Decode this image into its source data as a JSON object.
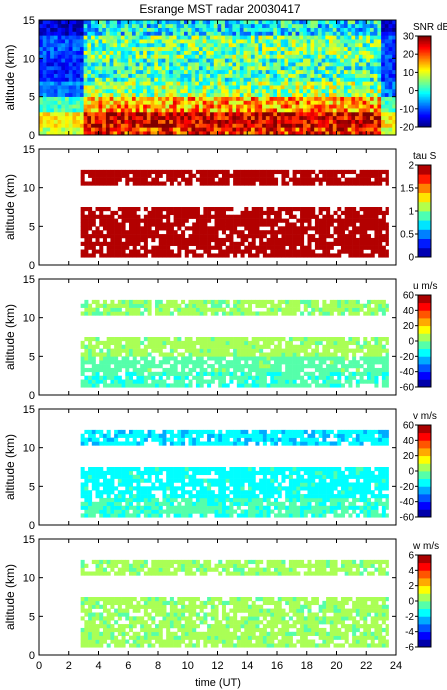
{
  "chart_data": {
    "type": "heatmap",
    "title": "Esrange MST radar 20030417",
    "xlabel": "time (UT)",
    "xlim": [
      0,
      24
    ],
    "xticks": [
      0,
      2,
      4,
      6,
      8,
      10,
      12,
      14,
      16,
      18,
      20,
      22,
      24
    ],
    "panels": [
      {
        "name": "SNR",
        "ylabel": "altitude (km)",
        "ylim": [
          0,
          15
        ],
        "yticks": [
          0,
          5,
          10,
          15
        ],
        "colorbar": {
          "label": "SNR dB",
          "min": -20,
          "max": 30,
          "ticks": [
            30,
            20,
            10,
            0,
            -10,
            -20
          ],
          "levels": "continuous"
        },
        "data_time_range": [
          0,
          24
        ],
        "layers": [
          {
            "alt": [
              0,
              1
            ],
            "value": 22
          },
          {
            "alt": [
              1,
              3
            ],
            "value": 26
          },
          {
            "alt": [
              3,
              5
            ],
            "value": 16
          },
          {
            "alt": [
              5,
              7
            ],
            "value": 6
          },
          {
            "alt": [
              7,
              10
            ],
            "value": 2
          },
          {
            "alt": [
              10,
              13
            ],
            "value": 4
          },
          {
            "alt": [
              13,
              15
            ],
            "value": -2
          }
        ]
      },
      {
        "name": "tau",
        "ylabel": "altitude (km)",
        "ylim": [
          0,
          15
        ],
        "yticks": [
          0,
          5,
          10,
          15
        ],
        "colorbar": {
          "label": "tau S",
          "min": 0,
          "max": 2,
          "ticks": [
            2,
            1.5,
            1,
            0.5,
            0
          ],
          "levels": 10
        },
        "data_time_range": [
          2.8,
          23.5
        ],
        "layers": [
          {
            "alt": [
              1,
              7.5
            ],
            "value": 1.95
          },
          {
            "alt": [
              10.3,
              12.3
            ],
            "value": 1.95
          }
        ]
      },
      {
        "name": "u",
        "ylabel": "altitude (km)",
        "ylim": [
          0,
          15
        ],
        "yticks": [
          0,
          5,
          10,
          15
        ],
        "colorbar": {
          "label": "u m/s",
          "min": -60,
          "max": 60,
          "ticks": [
            60,
            40,
            20,
            0,
            -20,
            -40,
            -60
          ],
          "levels": 12
        },
        "data_time_range": [
          2.8,
          23.5
        ],
        "layers": [
          {
            "alt": [
              1,
              3
            ],
            "value": -8
          },
          {
            "alt": [
              3,
              5
            ],
            "value": -4
          },
          {
            "alt": [
              5,
              7.5
            ],
            "value": 4
          },
          {
            "alt": [
              10.3,
              12.3
            ],
            "value": 2
          }
        ]
      },
      {
        "name": "v",
        "ylabel": "altitude (km)",
        "ylim": [
          0,
          15
        ],
        "yticks": [
          0,
          5,
          10,
          15
        ],
        "colorbar": {
          "label": "v m/s",
          "min": -60,
          "max": 60,
          "ticks": [
            60,
            40,
            20,
            0,
            -20,
            -40,
            -60
          ],
          "levels": 12
        },
        "data_time_range": [
          2.8,
          23.5
        ],
        "layers": [
          {
            "alt": [
              1,
              3.5
            ],
            "value": -8
          },
          {
            "alt": [
              3.5,
              7.5
            ],
            "value": -14
          },
          {
            "alt": [
              10.3,
              12.3
            ],
            "value": -18
          }
        ]
      },
      {
        "name": "w",
        "ylabel": "altitude (km)",
        "ylim": [
          0,
          15
        ],
        "yticks": [
          0,
          5,
          10,
          15
        ],
        "colorbar": {
          "label": "w m/s",
          "min": -6,
          "max": 6,
          "ticks": [
            6,
            4,
            2,
            0,
            -2,
            -4,
            -6
          ],
          "levels": 12
        },
        "data_time_range": [
          2.8,
          23.5
        ],
        "layers": [
          {
            "alt": [
              1,
              7.5
            ],
            "value": 0.3
          },
          {
            "alt": [
              10.3,
              12.3
            ],
            "value": 0.3
          }
        ]
      }
    ]
  }
}
